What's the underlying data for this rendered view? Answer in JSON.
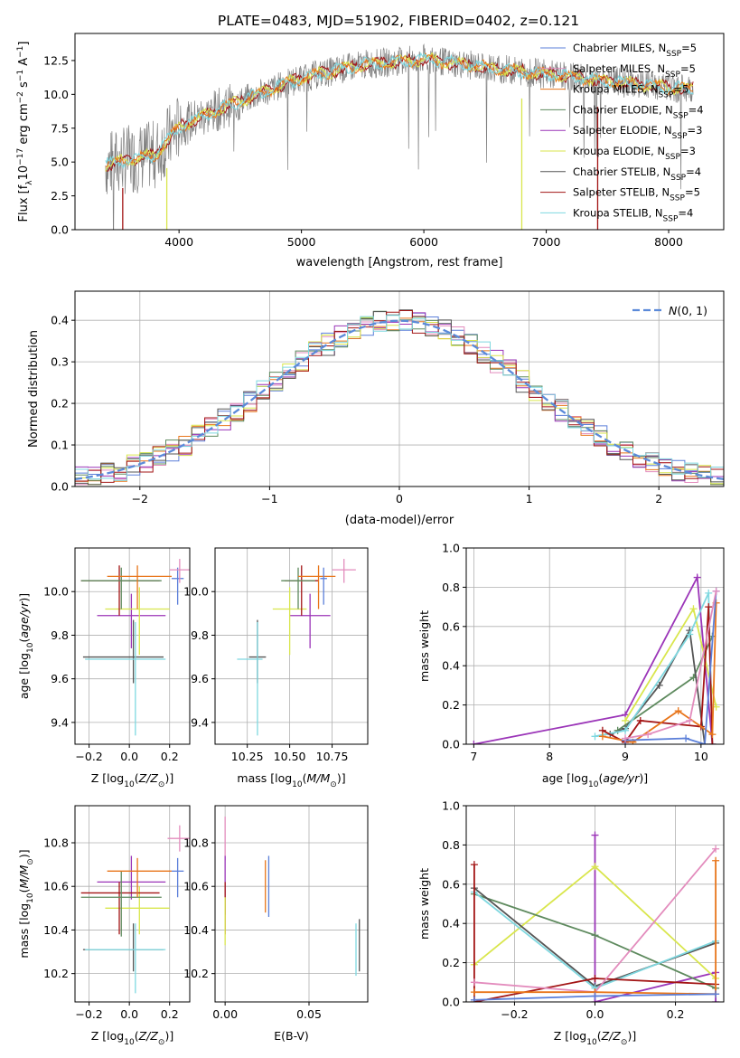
{
  "figure": {
    "title": "PLATE=0483, MJD=51902, FIBERID=0402, z=0.121"
  },
  "colors": {
    "chabrier_miles": "#5b7fd9",
    "salpeter_miles": "#e38cbd",
    "kroupa_miles": "#e8751a",
    "chabrier_elodie": "#5e8a5e",
    "salpeter_elodie": "#9b35b8",
    "kroupa_elodie": "#d9e64d",
    "chabrier_stelib": "#555555",
    "salpeter_stelib": "#a31515",
    "kroupa_stelib": "#7fd8e0",
    "gaussian": "#5b8ad9"
  },
  "chart_data": [
    {
      "id": "spectrum",
      "type": "line",
      "xlabel": "wavelength [Angstrom, rest frame]",
      "ylabel": "Flux [f_λ 10^-17 erg cm^-2 s^-1 A^-1]",
      "xlim": [
        3150,
        8450
      ],
      "ylim": [
        0,
        14.5
      ],
      "xticks": [
        4000,
        5000,
        6000,
        7000,
        8000
      ],
      "yticks": [
        0.0,
        2.5,
        5.0,
        7.5,
        10.0,
        12.5
      ],
      "grid": false,
      "legend_position": "top-right",
      "legend": [
        "Chabrier MILES, N_SSP=5",
        "Salpeter MILES, N_SSP=5",
        "Kroupa MILES, N_SSP=5",
        "Chabrier ELODIE, N_SSP=4",
        "Salpeter ELODIE, N_SSP=3",
        "Kroupa ELODIE, N_SSP=3",
        "Chabrier STELIB, N_SSP=4",
        "Salpeter STELIB, N_SSP=5",
        "Kroupa STELIB, N_SSP=4"
      ],
      "continuum_x": [
        3400,
        3600,
        3800,
        4000,
        4300,
        4700,
        5000,
        5500,
        6000,
        6500,
        7000,
        7500,
        8000,
        8200
      ],
      "continuum_y": [
        4.8,
        5.2,
        5.5,
        7.6,
        8.8,
        10.2,
        11.2,
        12.2,
        12.6,
        12.0,
        11.5,
        11.0,
        10.5,
        10.4
      ]
    },
    {
      "id": "residuals",
      "type": "bar",
      "xlabel": "(data-model)/error",
      "ylabel": "Normed distribution",
      "xlim": [
        -2.5,
        2.5
      ],
      "ylim": [
        0,
        0.47
      ],
      "xticks": [
        -2,
        -1,
        0,
        1,
        2
      ],
      "yticks": [
        0.0,
        0.1,
        0.2,
        0.3,
        0.4
      ],
      "grid": true,
      "legend": [
        "N(0,1)"
      ],
      "bin_width": 0.1,
      "bin_start": -2.5
    },
    {
      "id": "age_vs_Z",
      "type": "scatter",
      "xlabel": "Z [log10(Z/Z⊙)]",
      "ylabel": "age [log10(age/yr)]",
      "xlim": [
        -0.27,
        0.3
      ],
      "ylim": [
        9.3,
        10.2
      ],
      "xticks": [
        -0.2,
        0.0,
        0.2
      ],
      "xtick_labels": [
        "−0.2",
        "0.0",
        "0.2"
      ],
      "yticks": [
        9.4,
        9.6,
        9.8,
        10.0
      ],
      "grid": true,
      "points": [
        {
          "c": "chabrier_stelib",
          "x": 0.02,
          "y": 9.7,
          "xerr": [
            0.25,
            0.15
          ],
          "yerr": [
            0.12,
            0.17
          ]
        },
        {
          "c": "kroupa_stelib",
          "x": 0.03,
          "y": 9.69,
          "xerr": [
            0.25,
            0.15
          ],
          "yerr": [
            0.35,
            0.17
          ]
        },
        {
          "c": "salpeter_elodie",
          "x": 0.01,
          "y": 9.89,
          "xerr": [
            0.17,
            0.17
          ],
          "yerr": [
            0.15,
            0.1
          ]
        },
        {
          "c": "kroupa_elodie",
          "x": 0.05,
          "y": 9.92,
          "xerr": [
            0.17,
            0.15
          ],
          "yerr": [
            0.21,
            0.1
          ]
        },
        {
          "c": "salpeter_stelib",
          "x": -0.05,
          "y": 10.05,
          "xerr": [
            0.19,
            0.2
          ],
          "yerr": [
            0.16,
            0.07
          ]
        },
        {
          "c": "chabrier_elodie",
          "x": -0.04,
          "y": 10.05,
          "xerr": [
            0.2,
            0.2
          ],
          "yerr": [
            0.13,
            0.06
          ]
        },
        {
          "c": "kroupa_miles",
          "x": 0.04,
          "y": 10.07,
          "xerr": [
            0.15,
            0.17
          ],
          "yerr": [
            0.15,
            0.05
          ]
        },
        {
          "c": "chabrier_miles",
          "x": 0.24,
          "y": 10.06,
          "xerr": [
            0.03,
            0.03
          ],
          "yerr": [
            0.12,
            0.05
          ]
        },
        {
          "c": "salpeter_miles",
          "x": 0.25,
          "y": 10.1,
          "xerr": [
            0.05,
            0.05
          ],
          "yerr": [
            0.06,
            0.05
          ]
        }
      ]
    },
    {
      "id": "age_vs_mass",
      "type": "scatter",
      "xlabel": "mass [log10(M/M⊙)]",
      "ylabel": "",
      "xlim": [
        10.06,
        10.96
      ],
      "ylim": [
        9.3,
        10.2
      ],
      "xticks": [
        10.25,
        10.5,
        10.75
      ],
      "xtick_labels": [
        "10.25",
        "10.50",
        "10.75"
      ],
      "yticks": [
        9.4,
        9.6,
        9.8,
        10.0
      ],
      "grid": true,
      "points": [
        {
          "c": "chabrier_stelib",
          "x": 10.31,
          "y": 9.7,
          "xerr": [
            0.05,
            0.05
          ],
          "yerr": [
            0.12,
            0.17
          ]
        },
        {
          "c": "kroupa_stelib",
          "x": 10.31,
          "y": 9.69,
          "xerr": [
            0.12,
            0.03
          ],
          "yerr": [
            0.35,
            0.17
          ]
        },
        {
          "c": "salpeter_elodie",
          "x": 10.62,
          "y": 9.89,
          "xerr": [
            0.12,
            0.12
          ],
          "yerr": [
            0.15,
            0.1
          ]
        },
        {
          "c": "kroupa_elodie",
          "x": 10.5,
          "y": 9.92,
          "xerr": [
            0.1,
            0.1
          ],
          "yerr": [
            0.21,
            0.1
          ]
        },
        {
          "c": "salpeter_stelib",
          "x": 10.57,
          "y": 10.05,
          "xerr": [
            0.1,
            0.1
          ],
          "yerr": [
            0.16,
            0.07
          ]
        },
        {
          "c": "chabrier_elodie",
          "x": 10.55,
          "y": 10.05,
          "xerr": [
            0.1,
            0.1
          ],
          "yerr": [
            0.13,
            0.06
          ]
        },
        {
          "c": "kroupa_miles",
          "x": 10.67,
          "y": 10.07,
          "xerr": [
            0.12,
            0.1
          ],
          "yerr": [
            0.15,
            0.05
          ]
        },
        {
          "c": "chabrier_miles",
          "x": 10.7,
          "y": 10.06,
          "xerr": [
            0.02,
            0.02
          ],
          "yerr": [
            0.12,
            0.05
          ]
        },
        {
          "c": "salpeter_miles",
          "x": 10.82,
          "y": 10.1,
          "xerr": [
            0.07,
            0.07
          ],
          "yerr": [
            0.06,
            0.05
          ]
        }
      ]
    },
    {
      "id": "weight_vs_age",
      "type": "line",
      "xlabel": "age [log10(age/yr)]",
      "ylabel": "mass weight",
      "xlim": [
        6.9,
        10.3
      ],
      "ylim": [
        0,
        1.0
      ],
      "xticks": [
        7,
        8,
        9,
        10
      ],
      "yticks": [
        0.0,
        0.2,
        0.4,
        0.6,
        0.8,
        1.0
      ],
      "grid": true,
      "series": [
        {
          "c": "salpeter_elodie",
          "x": [
            7.0,
            9.0,
            9.95,
            10.15
          ],
          "y": [
            0.0,
            0.15,
            0.85,
            0.0
          ]
        },
        {
          "c": "kroupa_elodie",
          "x": [
            9.0,
            9.9,
            10.2
          ],
          "y": [
            0.12,
            0.69,
            0.19
          ]
        },
        {
          "c": "chabrier_elodie",
          "x": [
            8.9,
            9.9,
            10.15
          ],
          "y": [
            0.07,
            0.34,
            0.55
          ]
        },
        {
          "c": "chabrier_stelib",
          "x": [
            8.8,
            9.0,
            9.45,
            9.85,
            10.05
          ],
          "y": [
            0.05,
            0.08,
            0.3,
            0.58,
            0.0
          ]
        },
        {
          "c": "kroupa_stelib",
          "x": [
            8.6,
            9.0,
            9.85,
            10.1,
            10.15
          ],
          "y": [
            0.04,
            0.07,
            0.56,
            0.77,
            0.0
          ]
        },
        {
          "c": "salpeter_stelib",
          "x": [
            8.7,
            9.0,
            9.2,
            10.0,
            10.1,
            10.15
          ],
          "y": [
            0.07,
            0.01,
            0.12,
            0.09,
            0.7,
            0.0
          ]
        },
        {
          "c": "kroupa_miles",
          "x": [
            8.7,
            9.1,
            9.7,
            10.15,
            10.2
          ],
          "y": [
            0.04,
            0.01,
            0.17,
            0.05,
            0.72
          ]
        },
        {
          "c": "chabrier_miles",
          "x": [
            9.0,
            9.8,
            10.05,
            10.2
          ],
          "y": [
            0.02,
            0.03,
            0.0,
            0.78
          ]
        },
        {
          "c": "salpeter_miles",
          "x": [
            9.0,
            9.3,
            9.85,
            10.2
          ],
          "y": [
            0.03,
            0.05,
            0.12,
            0.78
          ]
        }
      ]
    },
    {
      "id": "mass_vs_Z",
      "type": "scatter",
      "xlabel": "Z [log10(Z/Z⊙)]",
      "ylabel": "mass [log10(M/M⊙)]",
      "xlim": [
        -0.27,
        0.3
      ],
      "ylim": [
        10.07,
        10.97
      ],
      "xticks": [
        -0.2,
        0.0,
        0.2
      ],
      "xtick_labels": [
        "−0.2",
        "0.0",
        "0.2"
      ],
      "yticks": [
        10.2,
        10.4,
        10.6,
        10.8
      ],
      "grid": true,
      "points": [
        {
          "c": "chabrier_stelib",
          "x": 0.02,
          "y": 10.31,
          "xerr": [
            0.25,
            0.15
          ],
          "yerr": [
            0.1,
            0.12
          ]
        },
        {
          "c": "kroupa_stelib",
          "x": 0.03,
          "y": 10.31,
          "xerr": [
            0.25,
            0.15
          ],
          "yerr": [
            0.2,
            0.12
          ]
        },
        {
          "c": "salpeter_elodie",
          "x": 0.01,
          "y": 10.62,
          "xerr": [
            0.17,
            0.17
          ],
          "yerr": [
            0.08,
            0.12
          ]
        },
        {
          "c": "kroupa_elodie",
          "x": 0.05,
          "y": 10.5,
          "xerr": [
            0.17,
            0.15
          ],
          "yerr": [
            0.12,
            0.1
          ]
        },
        {
          "c": "salpeter_stelib",
          "x": -0.05,
          "y": 10.57,
          "xerr": [
            0.19,
            0.2
          ],
          "yerr": [
            0.19,
            0.05
          ]
        },
        {
          "c": "chabrier_elodie",
          "x": -0.04,
          "y": 10.55,
          "xerr": [
            0.2,
            0.2
          ],
          "yerr": [
            0.18,
            0.12
          ]
        },
        {
          "c": "kroupa_miles",
          "x": 0.04,
          "y": 10.67,
          "xerr": [
            0.15,
            0.17
          ],
          "yerr": [
            0.12,
            0.06
          ]
        },
        {
          "c": "chabrier_miles",
          "x": 0.24,
          "y": 10.67,
          "xerr": [
            0.03,
            0.03
          ],
          "yerr": [
            0.12,
            0.06
          ]
        },
        {
          "c": "salpeter_miles",
          "x": 0.25,
          "y": 10.82,
          "xerr": [
            0.06,
            0.06
          ],
          "yerr": [
            0.06,
            0.06
          ]
        }
      ]
    },
    {
      "id": "mass_vs_ebv",
      "type": "scatter",
      "xlabel": "E(B-V)",
      "ylabel": "",
      "xlim": [
        -0.006,
        0.085
      ],
      "ylim": [
        10.07,
        10.97
      ],
      "xticks": [
        0.0,
        0.05
      ],
      "xtick_labels": [
        "0.00",
        "0.05"
      ],
      "yticks": [
        10.2,
        10.4,
        10.6,
        10.8
      ],
      "grid": true,
      "points": [
        {
          "c": "salpeter_miles",
          "x": 0.0,
          "y": 10.82,
          "xerr": [
            0,
            0
          ],
          "yerr": [
            0.1,
            0.1
          ]
        },
        {
          "c": "salpeter_elodie",
          "x": 0.0,
          "y": 10.62,
          "xerr": [
            0,
            0
          ],
          "yerr": [
            0.15,
            0.12
          ]
        },
        {
          "c": "salpeter_stelib",
          "x": 0.0,
          "y": 10.57,
          "xerr": [
            0,
            0
          ],
          "yerr": [
            0.19,
            0.05
          ]
        },
        {
          "c": "kroupa_elodie",
          "x": 0.0,
          "y": 10.45,
          "xerr": [
            0,
            0
          ],
          "yerr": [
            0.12,
            0.1
          ]
        },
        {
          "c": "kroupa_miles",
          "x": 0.024,
          "y": 10.6,
          "xerr": [
            0,
            0
          ],
          "yerr": [
            0.12,
            0.12
          ]
        },
        {
          "c": "chabrier_miles",
          "x": 0.026,
          "y": 10.6,
          "xerr": [
            0,
            0
          ],
          "yerr": [
            0.14,
            0.14
          ]
        },
        {
          "c": "kroupa_stelib",
          "x": 0.078,
          "y": 10.31,
          "xerr": [
            0,
            0
          ],
          "yerr": [
            0.12,
            0.12
          ]
        },
        {
          "c": "chabrier_stelib",
          "x": 0.08,
          "y": 10.33,
          "xerr": [
            0,
            0
          ],
          "yerr": [
            0.12,
            0.12
          ]
        }
      ]
    },
    {
      "id": "weight_vs_Z",
      "type": "line",
      "xlabel": "Z [log10(Z/Z⊙)]",
      "ylabel": "mass weight",
      "xlim": [
        -0.32,
        0.32
      ],
      "ylim": [
        0,
        1.0
      ],
      "xticks": [
        -0.2,
        0.0,
        0.2
      ],
      "xtick_labels": [
        "−0.2",
        "0.0",
        "0.2"
      ],
      "yticks": [
        0.0,
        0.2,
        0.4,
        0.6,
        0.8,
        1.0
      ],
      "grid": true,
      "series": [
        {
          "c": "salpeter_elodie",
          "x": [
            0.0,
            0.0,
            0.3,
            0.3
          ],
          "y": [
            0.85,
            0.0,
            0.15,
            0.0
          ]
        },
        {
          "c": "kroupa_elodie",
          "x": [
            -0.3,
            0.0,
            0.3
          ],
          "y": [
            0.19,
            0.69,
            0.12
          ]
        },
        {
          "c": "chabrier_elodie",
          "x": [
            -0.3,
            0.0,
            0.3
          ],
          "y": [
            0.55,
            0.34,
            0.07
          ]
        },
        {
          "c": "chabrier_stelib",
          "x": [
            -0.3,
            0.0,
            0.3
          ],
          "y": [
            0.58,
            0.08,
            0.3
          ]
        },
        {
          "c": "kroupa_stelib",
          "x": [
            -0.3,
            0.0,
            0.3
          ],
          "y": [
            0.56,
            0.07,
            0.31
          ]
        },
        {
          "c": "salpeter_stelib",
          "x": [
            -0.3,
            -0.3,
            0.0,
            0.3
          ],
          "y": [
            0.7,
            0.0,
            0.12,
            0.09
          ]
        },
        {
          "c": "salpeter_miles",
          "x": [
            -0.3,
            0.0,
            0.3
          ],
          "y": [
            0.1,
            0.05,
            0.78
          ]
        },
        {
          "c": "kroupa_miles",
          "x": [
            -0.3,
            0.0,
            0.3,
            0.3
          ],
          "y": [
            0.05,
            0.05,
            0.04,
            0.72
          ]
        },
        {
          "c": "chabrier_miles",
          "x": [
            -0.3,
            0.0,
            0.3
          ],
          "y": [
            0.01,
            0.03,
            0.04
          ]
        }
      ]
    }
  ]
}
